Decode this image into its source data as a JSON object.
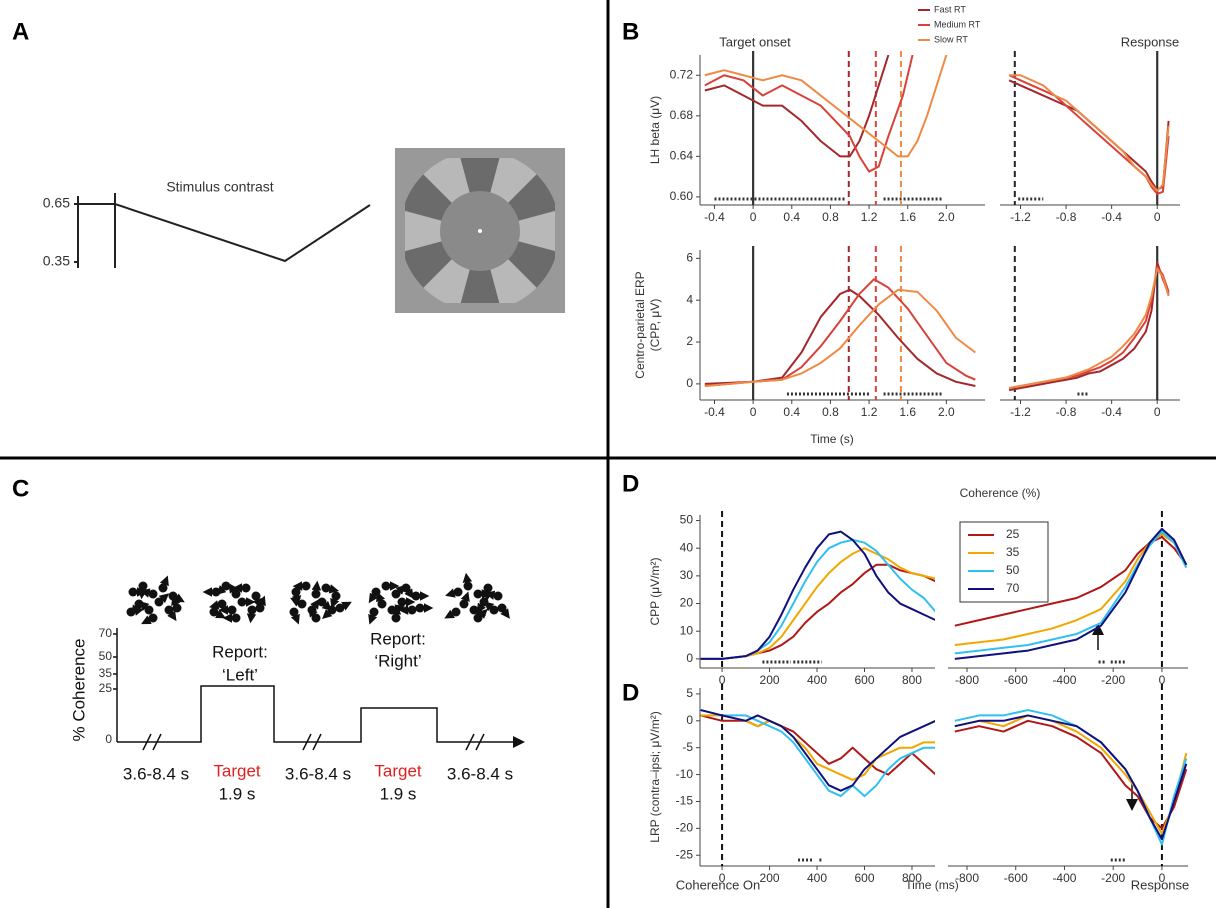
{
  "panels": {
    "a": {
      "label": "A",
      "contrast_title": "Stimulus contrast",
      "ticks": [
        0.65,
        0.35
      ]
    },
    "b": {
      "label": "B"
    },
    "c": {
      "label": "C",
      "axis_label": "% Coherence",
      "ticks": [
        70,
        50,
        35,
        25,
        0
      ],
      "reports": [
        {
          "line1": "Report:",
          "line2": "‘Left’"
        },
        {
          "line1": "Report:",
          "line2": "‘Right’"
        }
      ],
      "targets": [
        {
          "label": "Target",
          "duration": "1.9 s"
        },
        {
          "label": "Target",
          "duration": "1.9 s"
        }
      ],
      "intervals": [
        "3.6-8.4 s",
        "3.6-8.4 s",
        "3.6-8.4 s"
      ]
    },
    "d": {
      "label": "D",
      "label2": "D"
    }
  },
  "chart_data": [
    {
      "type": "line",
      "ylabel": [
        "LH beta (μV)"
      ],
      "annotation": "Target onset",
      "legend": "top",
      "xlim": [
        -0.55,
        2.4
      ],
      "ylim": [
        0.592,
        0.74
      ],
      "xticks": [
        -0.4,
        0,
        0.4,
        0.8,
        1.2,
        1.6,
        {
          "value": 2,
          "label": "2.0"
        }
      ],
      "yticks": [
        {
          "value": 0.6,
          "label": "0.60"
        },
        0.64,
        0.68,
        0.72
      ],
      "vlines": [
        {
          "value": 0,
          "color": "#333333"
        },
        {
          "value": 0.99,
          "color": "#a3282c",
          "dashed": true
        },
        {
          "value": 1.27,
          "color": "#d9413a",
          "dashed": true
        },
        {
          "value": 1.53,
          "color": "#ee8a45",
          "dashed": true
        }
      ],
      "sig": [
        [
          -0.4,
          0.95
        ],
        [
          1.35,
          1.95
        ]
      ],
      "series": [
        {
          "name": "Fast RT",
          "color": "#a3282c",
          "x": [
            -0.5,
            -0.3,
            -0.1,
            0.1,
            0.3,
            0.5,
            0.7,
            0.9,
            1.0,
            1.1,
            1.2,
            1.3,
            1.4
          ],
          "values": [
            0.705,
            0.71,
            0.7,
            0.69,
            0.69,
            0.675,
            0.655,
            0.64,
            0.64,
            0.655,
            0.68,
            0.71,
            0.74
          ]
        },
        {
          "name": "Medium RT",
          "color": "#d9413a",
          "x": [
            -0.5,
            -0.3,
            -0.1,
            0.1,
            0.3,
            0.5,
            0.7,
            0.9,
            1.0,
            1.1,
            1.2,
            1.3,
            1.4,
            1.55,
            1.65
          ],
          "values": [
            0.71,
            0.72,
            0.715,
            0.7,
            0.71,
            0.7,
            0.69,
            0.67,
            0.66,
            0.64,
            0.625,
            0.63,
            0.66,
            0.7,
            0.74
          ]
        },
        {
          "name": "Slow RT",
          "color": "#ee8a45",
          "x": [
            -0.5,
            -0.3,
            -0.1,
            0.1,
            0.3,
            0.5,
            0.7,
            0.9,
            1.1,
            1.3,
            1.5,
            1.6,
            1.7,
            1.8,
            1.9,
            2.0
          ],
          "values": [
            0.72,
            0.725,
            0.72,
            0.715,
            0.72,
            0.715,
            0.7,
            0.685,
            0.67,
            0.655,
            0.64,
            0.64,
            0.655,
            0.68,
            0.71,
            0.74
          ]
        }
      ]
    },
    {
      "type": "line",
      "annotation": "Response",
      "xlim": [
        -1.38,
        0.2
      ],
      "ylim": [
        0.592,
        0.74
      ],
      "xticks": [
        -1.2,
        -0.8,
        -0.4,
        0
      ],
      "vlines": [
        {
          "value": -1.25,
          "color": "#222222",
          "dashed": true
        },
        {
          "value": 0,
          "color": "#333333"
        }
      ],
      "sig": [
        [
          -1.22,
          -1.0
        ]
      ],
      "x": [
        -1.3,
        -1.2,
        -1.1,
        -1.0,
        -0.9,
        -0.8,
        -0.7,
        -0.6,
        -0.5,
        -0.4,
        -0.3,
        -0.2,
        -0.1,
        -0.05,
        0,
        0.05,
        0.1
      ],
      "series": [
        {
          "color": "#a3282c",
          "values": [
            0.715,
            0.71,
            0.705,
            0.7,
            0.695,
            0.69,
            0.685,
            0.675,
            0.665,
            0.655,
            0.645,
            0.635,
            0.625,
            0.615,
            0.607,
            0.61,
            0.675
          ]
        },
        {
          "color": "#d9413a",
          "values": [
            0.72,
            0.715,
            0.71,
            0.705,
            0.7,
            0.69,
            0.68,
            0.67,
            0.66,
            0.65,
            0.64,
            0.63,
            0.62,
            0.61,
            0.603,
            0.605,
            0.66
          ]
        },
        {
          "color": "#ee8a45",
          "values": [
            0.72,
            0.72,
            0.715,
            0.71,
            0.7,
            0.695,
            0.685,
            0.675,
            0.665,
            0.655,
            0.645,
            0.63,
            0.62,
            0.612,
            0.606,
            0.612,
            0.67
          ]
        }
      ]
    },
    {
      "type": "line",
      "ylabel": [
        "Centro-parietal ERP",
        "(CPP, μV)"
      ],
      "xlabel": "Time (s)",
      "xlim": [
        -0.55,
        2.4
      ],
      "ylim": [
        -0.77,
        6.4
      ],
      "xticks": [
        -0.4,
        0,
        0.4,
        0.8,
        1.2,
        1.6,
        {
          "value": 2,
          "label": "2.0"
        }
      ],
      "yticks": [
        0,
        2,
        4,
        6
      ],
      "vlines": [
        {
          "value": 0,
          "color": "#333333"
        },
        {
          "value": 0.99,
          "color": "#a3282c",
          "dashed": true
        },
        {
          "value": 1.27,
          "color": "#d9413a",
          "dashed": true
        },
        {
          "value": 1.53,
          "color": "#ee8a45",
          "dashed": true
        }
      ],
      "sig": [
        [
          0.35,
          1.2
        ],
        [
          1.35,
          1.95
        ]
      ],
      "series": [
        {
          "color": "#a3282c",
          "x": [
            -0.5,
            0,
            0.3,
            0.5,
            0.7,
            0.9,
            1.0,
            1.1,
            1.3,
            1.5,
            1.7,
            1.9,
            2.1,
            2.3
          ],
          "values": [
            0,
            0.1,
            0.3,
            1.5,
            3.2,
            4.3,
            4.5,
            4.2,
            3.3,
            2.2,
            1.2,
            0.5,
            0.1,
            -0.1
          ]
        },
        {
          "color": "#d9413a",
          "x": [
            -0.5,
            0,
            0.3,
            0.5,
            0.7,
            0.9,
            1.1,
            1.25,
            1.4,
            1.6,
            1.8,
            2.0,
            2.2,
            2.3
          ],
          "values": [
            -0.1,
            0.1,
            0.2,
            0.8,
            1.8,
            3.0,
            4.3,
            5.0,
            4.6,
            3.6,
            2.3,
            1.0,
            0.4,
            0.2
          ]
        },
        {
          "color": "#ee8a45",
          "x": [
            -0.5,
            0,
            0.3,
            0.5,
            0.7,
            0.9,
            1.1,
            1.3,
            1.5,
            1.7,
            1.9,
            2.1,
            2.3
          ],
          "values": [
            -0.1,
            0.1,
            0.2,
            0.5,
            1.0,
            1.7,
            2.8,
            3.8,
            4.5,
            4.4,
            3.5,
            2.2,
            1.5
          ]
        }
      ]
    },
    {
      "type": "line",
      "xlim": [
        -1.38,
        0.2
      ],
      "ylim": [
        -0.77,
        6.4
      ],
      "xticks": [
        -1.2,
        -0.8,
        -0.4,
        0
      ],
      "vlines": [
        {
          "value": -1.25,
          "color": "#222222",
          "dashed": true
        },
        {
          "value": 0,
          "color": "#333333"
        }
      ],
      "sig": [
        [
          -0.7,
          -0.6
        ]
      ],
      "x": [
        -1.3,
        -1.2,
        -1.1,
        -1.0,
        -0.9,
        -0.8,
        -0.7,
        -0.6,
        -0.5,
        -0.4,
        -0.3,
        -0.2,
        -0.1,
        -0.05,
        0,
        0.05,
        0.1
      ],
      "series": [
        {
          "color": "#a3282c",
          "values": [
            -0.3,
            -0.2,
            -0.1,
            0,
            0.1,
            0.2,
            0.3,
            0.5,
            0.6,
            0.9,
            1.2,
            1.7,
            2.5,
            3.5,
            5.8,
            5.0,
            4.3
          ]
        },
        {
          "color": "#d9413a",
          "values": [
            -0.2,
            -0.1,
            0,
            0.1,
            0.2,
            0.3,
            0.4,
            0.6,
            0.8,
            1.1,
            1.5,
            2.2,
            3.0,
            4.0,
            5.6,
            5.2,
            4.4
          ]
        },
        {
          "color": "#ee8a45",
          "values": [
            -0.2,
            -0.1,
            0,
            0.1,
            0.2,
            0.3,
            0.5,
            0.7,
            1.0,
            1.3,
            1.8,
            2.4,
            3.3,
            4.2,
            5.5,
            5.1,
            4.2
          ]
        }
      ]
    },
    {
      "type": "line",
      "ylabel": [
        "CPP (μV/m²)"
      ],
      "legend": "top right",
      "legend_title": "Coherence (%)",
      "xlim": [
        -93,
        897
      ],
      "ylim": [
        -3.3,
        52
      ],
      "xticks": [
        0,
        200,
        400,
        600,
        800
      ],
      "yticks": [
        0,
        10,
        20,
        30,
        40,
        50
      ],
      "vlines": [
        {
          "value": 0,
          "color": "#111111",
          "dashed": true
        }
      ],
      "sig": [
        [
          170,
          290
        ],
        [
          300,
          420
        ]
      ],
      "x": [
        -90,
        0,
        100,
        150,
        200,
        250,
        300,
        350,
        400,
        450,
        500,
        550,
        600,
        650,
        700,
        750,
        800,
        850,
        900
      ],
      "series": [
        {
          "name": "25",
          "color": "#b01818",
          "values": [
            0,
            0,
            1,
            2,
            3,
            5,
            8,
            13,
            17,
            20,
            24,
            27,
            31,
            34,
            34,
            32,
            31,
            30,
            28
          ]
        },
        {
          "name": "35",
          "color": "#f0a800",
          "values": [
            0,
            0,
            1,
            2,
            4,
            8,
            14,
            20,
            26,
            31,
            35,
            38,
            40,
            38,
            36,
            33,
            31,
            30,
            29
          ]
        },
        {
          "name": "50",
          "color": "#30c0f0",
          "values": [
            0,
            0,
            1,
            3,
            6,
            12,
            20,
            28,
            35,
            40,
            42,
            43,
            42,
            39,
            34,
            29,
            25,
            22,
            17
          ]
        },
        {
          "name": "70",
          "color": "#101080",
          "values": [
            0,
            0,
            1,
            3,
            8,
            16,
            25,
            33,
            40,
            45,
            46,
            43,
            38,
            30,
            24,
            20,
            18,
            16,
            14
          ]
        }
      ]
    },
    {
      "type": "line",
      "xlim": [
        -878,
        107
      ],
      "ylim": [
        -3.3,
        52
      ],
      "xticks": [
        -800,
        -600,
        -400,
        -200,
        0
      ],
      "vlines": [
        {
          "value": 0,
          "color": "#111111",
          "dashed": true
        }
      ],
      "sig": [
        [
          -260,
          -230
        ],
        [
          -210,
          -150
        ]
      ],
      "x": [
        -850,
        -750,
        -650,
        -550,
        -450,
        -350,
        -250,
        -150,
        -100,
        -50,
        0,
        50,
        100
      ],
      "series": [
        {
          "color": "#b01818",
          "values": [
            12,
            14,
            16,
            18,
            20,
            22,
            26,
            32,
            38,
            42,
            44,
            40,
            34
          ]
        },
        {
          "color": "#f0a800",
          "values": [
            5,
            6,
            7,
            9,
            11,
            14,
            18,
            28,
            36,
            42,
            45,
            42,
            33
          ]
        },
        {
          "color": "#30c0f0",
          "values": [
            2,
            3,
            4,
            5,
            7,
            9,
            13,
            26,
            34,
            41,
            46,
            42,
            33
          ]
        },
        {
          "color": "#101080",
          "values": [
            0,
            1,
            2,
            3,
            5,
            7,
            12,
            24,
            33,
            42,
            47,
            43,
            34
          ]
        }
      ]
    },
    {
      "type": "line",
      "ylabel": [
        "LRP (contra–ipsi; μV/m²)"
      ],
      "annotation": "Coherence On",
      "xlabel": "Time (ms)",
      "xlim": [
        -93,
        897
      ],
      "ylim": [
        -27,
        6.1
      ],
      "xticks": [
        0,
        200,
        400,
        600,
        800
      ],
      "yticks": [
        5,
        0,
        -5,
        -10,
        -15,
        -20,
        -25
      ],
      "vlines": [
        {
          "value": 0,
          "color": "#111111",
          "dashed": true
        }
      ],
      "sig": [
        [
          320,
          380
        ],
        [
          410,
          425
        ]
      ],
      "x": [
        -90,
        0,
        100,
        150,
        200,
        250,
        300,
        350,
        400,
        450,
        500,
        550,
        600,
        650,
        700,
        750,
        800,
        850,
        900
      ],
      "series": [
        {
          "color": "#b01818",
          "values": [
            1,
            0,
            0,
            -1,
            0,
            -1,
            -2,
            -4,
            -6,
            -8,
            -7,
            -5,
            -7,
            -9,
            -10,
            -8,
            -6,
            -8,
            -10
          ]
        },
        {
          "color": "#f0a800",
          "values": [
            1,
            1,
            0,
            -1,
            0,
            -1,
            -3,
            -5,
            -8,
            -9,
            -10,
            -11,
            -10,
            -7,
            -6,
            -5,
            -5,
            -4,
            -4
          ]
        },
        {
          "color": "#30c0f0",
          "values": [
            2,
            1,
            1,
            0,
            -1,
            -2,
            -4,
            -7,
            -10,
            -13,
            -14,
            -12,
            -14,
            -12,
            -9,
            -7,
            -6,
            -5,
            -5
          ]
        },
        {
          "color": "#101080",
          "values": [
            2,
            1,
            0,
            1,
            0,
            -1,
            -3,
            -6,
            -9,
            -12,
            -13,
            -12,
            -9,
            -7,
            -5,
            -3,
            -2,
            -1,
            0
          ]
        }
      ]
    },
    {
      "type": "line",
      "annotation": "Response",
      "xlim": [
        -878,
        107
      ],
      "ylim": [
        -27,
        6.1
      ],
      "xticks": [
        -800,
        -600,
        -400,
        -200,
        0
      ],
      "vlines": [
        {
          "value": 0,
          "color": "#111111",
          "dashed": true
        }
      ],
      "sig": [
        [
          -210,
          -150
        ]
      ],
      "x": [
        -850,
        -750,
        -650,
        -550,
        -450,
        -350,
        -250,
        -150,
        -100,
        -50,
        0,
        50,
        100
      ],
      "series": [
        {
          "color": "#b01818",
          "values": [
            -2,
            -1,
            -2,
            0,
            -1,
            -3,
            -6,
            -12,
            -14,
            -18,
            -20,
            -16,
            -9
          ]
        },
        {
          "color": "#f0a800",
          "values": [
            -1,
            0,
            -1,
            1,
            0,
            -2,
            -5,
            -10,
            -13,
            -17,
            -21,
            -15,
            -6
          ]
        },
        {
          "color": "#30c0f0",
          "values": [
            0,
            1,
            1,
            2,
            1,
            -1,
            -4,
            -9,
            -13,
            -18,
            -23,
            -14,
            -7
          ]
        },
        {
          "color": "#101080",
          "values": [
            -1,
            0,
            0,
            1,
            0,
            -1,
            -4,
            -9,
            -13,
            -18,
            -22,
            -15,
            -8
          ]
        }
      ]
    }
  ]
}
